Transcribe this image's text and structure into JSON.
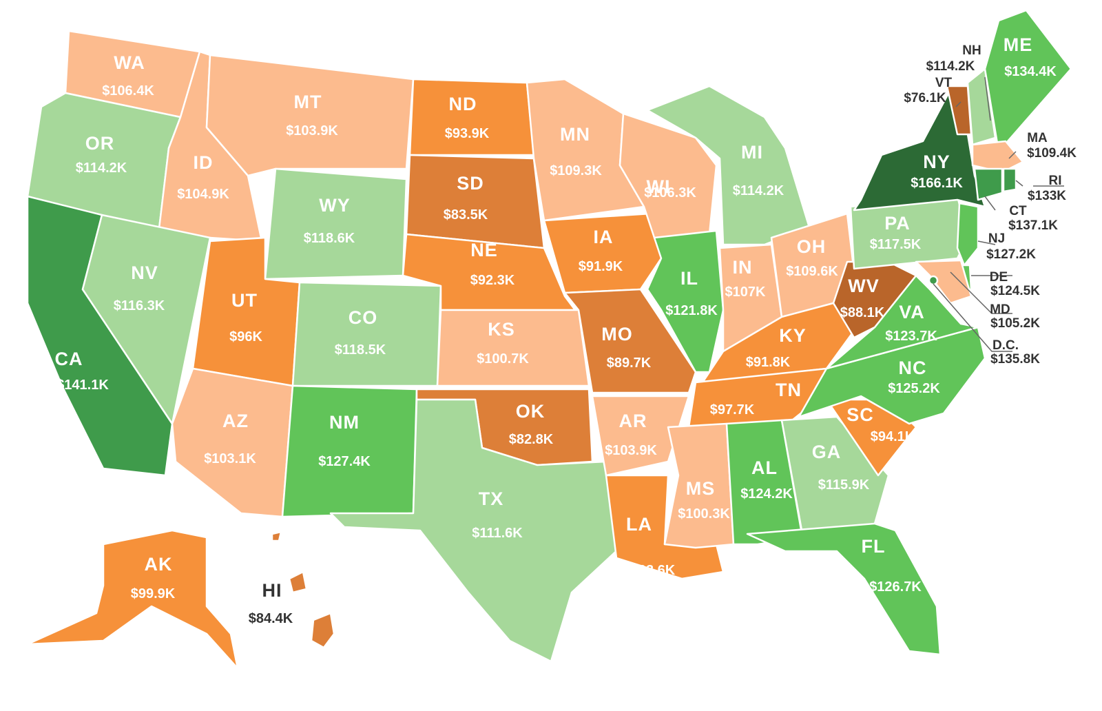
{
  "colors": {
    "light_orange": "#fcbb8e",
    "orange": "#f6913a",
    "dark_orange": "#dd7f38",
    "brown": "#b9652a",
    "light_green": "#a6d89a",
    "mid_green": "#61c459",
    "green": "#3f9b4b",
    "dark_green": "#2c6a35"
  },
  "states": {
    "WA": {
      "abbr": "WA",
      "value": "$106.4K"
    },
    "OR": {
      "abbr": "OR",
      "value": "$114.2K"
    },
    "CA": {
      "abbr": "CA",
      "value": "$141.1K"
    },
    "ID": {
      "abbr": "ID",
      "value": "$104.9K"
    },
    "NV": {
      "abbr": "NV",
      "value": "$116.3K"
    },
    "MT": {
      "abbr": "MT",
      "value": "$103.9K"
    },
    "WY": {
      "abbr": "WY",
      "value": "$118.6K"
    },
    "UT": {
      "abbr": "UT",
      "value": "$96K"
    },
    "AZ": {
      "abbr": "AZ",
      "value": "$103.1K"
    },
    "CO": {
      "abbr": "CO",
      "value": "$118.5K"
    },
    "NM": {
      "abbr": "NM",
      "value": "$127.4K"
    },
    "ND": {
      "abbr": "ND",
      "value": "$93.9K"
    },
    "SD": {
      "abbr": "SD",
      "value": "$83.5K"
    },
    "NE": {
      "abbr": "NE",
      "value": "$92.3K"
    },
    "KS": {
      "abbr": "KS",
      "value": "$100.7K"
    },
    "OK": {
      "abbr": "OK",
      "value": "$82.8K"
    },
    "TX": {
      "abbr": "TX",
      "value": "$111.6K"
    },
    "MN": {
      "abbr": "MN",
      "value": "$109.3K"
    },
    "IA": {
      "abbr": "IA",
      "value": "$91.9K"
    },
    "MO": {
      "abbr": "MO",
      "value": "$89.7K"
    },
    "AR": {
      "abbr": "AR",
      "value": "$103.9K"
    },
    "LA": {
      "abbr": "LA",
      "value": "$93.6K"
    },
    "WI": {
      "abbr": "WI",
      "value": "$106.3K"
    },
    "IL": {
      "abbr": "IL",
      "value": "$121.8K"
    },
    "MI": {
      "abbr": "MI",
      "value": "$114.2K"
    },
    "IN": {
      "abbr": "IN",
      "value": "$107K"
    },
    "OH": {
      "abbr": "OH",
      "value": "$109.6K"
    },
    "KY": {
      "abbr": "KY",
      "value": "$91.8K"
    },
    "TN": {
      "abbr": "TN",
      "value": "$97.7K"
    },
    "MS": {
      "abbr": "MS",
      "value": "$100.3K"
    },
    "AL": {
      "abbr": "AL",
      "value": "$124.2K"
    },
    "GA": {
      "abbr": "GA",
      "value": "$115.9K"
    },
    "FL": {
      "abbr": "FL",
      "value": "$126.7K"
    },
    "SC": {
      "abbr": "SC",
      "value": "$94.1K"
    },
    "NC": {
      "abbr": "NC",
      "value": "$125.2K"
    },
    "VA": {
      "abbr": "VA",
      "value": "$123.7K"
    },
    "WV": {
      "abbr": "WV",
      "value": "$88.1K"
    },
    "PA": {
      "abbr": "PA",
      "value": "$117.5K"
    },
    "NY": {
      "abbr": "NY",
      "value": "$166.1K"
    },
    "VT": {
      "abbr": "VT",
      "value": "$76.1K"
    },
    "NH": {
      "abbr": "NH",
      "value": "$114.2K"
    },
    "ME": {
      "abbr": "ME",
      "value": "$134.4K"
    },
    "MA": {
      "abbr": "MA",
      "value": "$109.4K"
    },
    "RI": {
      "abbr": "RI",
      "value": "$133K"
    },
    "CT": {
      "abbr": "CT",
      "value": "$137.1K"
    },
    "NJ": {
      "abbr": "NJ",
      "value": "$127.2K"
    },
    "DE": {
      "abbr": "DE",
      "value": "$124.5K"
    },
    "MD": {
      "abbr": "MD",
      "value": "$105.2K"
    },
    "DC": {
      "abbr": "D.C.",
      "value": "$135.8K"
    },
    "AK": {
      "abbr": "AK",
      "value": "$99.9K"
    },
    "HI": {
      "abbr": "HI",
      "value": "$84.4K"
    }
  }
}
